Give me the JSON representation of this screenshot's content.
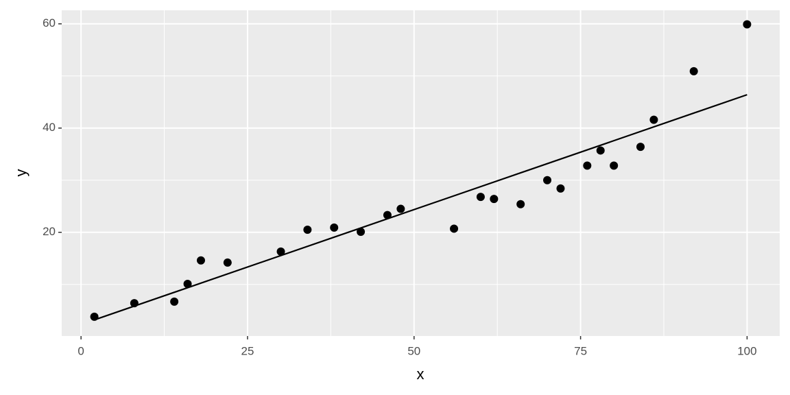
{
  "chart_data": {
    "type": "scatter",
    "x_label": "x",
    "y_label": "y",
    "x": [
      2,
      8,
      14,
      16,
      18,
      22,
      30,
      34,
      38,
      42,
      46,
      48,
      56,
      60,
      62,
      66,
      70,
      72,
      76,
      78,
      80,
      84,
      86,
      92,
      100
    ],
    "y": [
      3.8,
      6.4,
      6.7,
      10.1,
      14.6,
      14.2,
      16.3,
      20.5,
      20.9,
      20.1,
      23.3,
      24.5,
      20.7,
      26.8,
      26.4,
      25.4,
      30,
      28.4,
      32.8,
      35.7,
      32.8,
      36.4,
      41.6,
      50.9,
      59.9
    ],
    "color": "#000000",
    "fit": {
      "x": [
        2,
        100
      ],
      "y": [
        3.2,
        46.4
      ],
      "color": "#000000"
    },
    "xlim": [
      -2.9,
      104.9
    ],
    "ylim": [
      0.1,
      62.6
    ],
    "xticks": [
      0,
      25,
      50,
      75,
      100
    ],
    "yticks": [
      20,
      40,
      60
    ],
    "xminor": [
      12.5,
      37.5,
      62.5,
      87.5
    ],
    "yminor": [
      10,
      30,
      50
    ],
    "grid": true
  }
}
